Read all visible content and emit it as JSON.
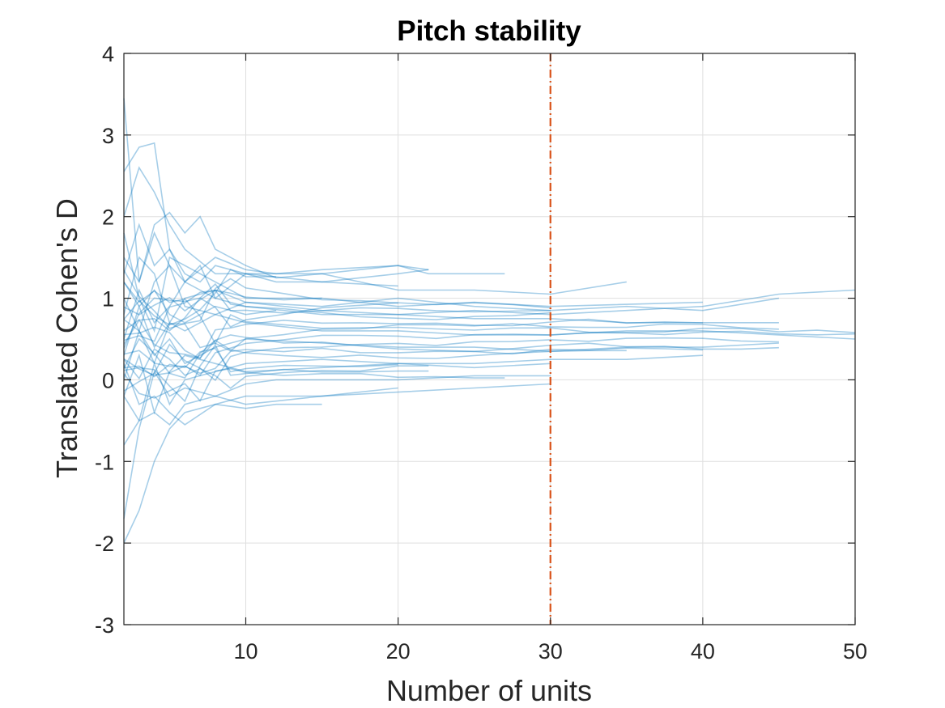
{
  "chart_data": {
    "type": "line",
    "title": "Pitch stability",
    "xlabel": "Number of units",
    "ylabel": "Translated Cohen's D",
    "xlim": [
      2,
      50
    ],
    "ylim": [
      -3,
      4
    ],
    "x_ticks": [
      10,
      20,
      30,
      40,
      50
    ],
    "y_ticks": [
      4,
      3,
      2,
      1,
      0,
      -1,
      -2,
      -3
    ],
    "grid": true,
    "legend": "none",
    "line_color": "#0072bd",
    "line_opacity": 0.35,
    "reference_line": {
      "x": 30,
      "style": "dash-dot",
      "color": "#d95319"
    },
    "series_x_max": [
      27,
      22,
      22,
      20,
      35,
      40,
      45,
      45,
      50,
      50,
      45,
      40,
      30,
      30,
      30,
      20,
      15,
      12
    ],
    "series": [
      {
        "x": [
          2,
          3,
          4,
          5,
          6,
          7,
          8,
          10,
          12,
          15,
          20,
          22,
          25,
          27
        ],
        "y": [
          1.3,
          1.9,
          1.4,
          1.6,
          1.2,
          1.4,
          1.0,
          1.3,
          1.3,
          1.3,
          1.4,
          1.3,
          1.3,
          1.3
        ]
      },
      {
        "x": [
          2,
          3,
          4,
          5,
          6,
          8,
          10,
          12,
          15,
          20,
          22
        ],
        "y": [
          3.45,
          1.2,
          1.8,
          1.4,
          1.2,
          1.5,
          1.35,
          1.3,
          1.35,
          1.4,
          1.35
        ]
      },
      {
        "x": [
          2,
          3,
          4,
          5,
          6,
          7,
          8,
          10,
          15,
          20,
          22
        ],
        "y": [
          2.55,
          2.85,
          2.9,
          1.6,
          1.3,
          1.2,
          1.4,
          1.3,
          1.2,
          1.3,
          1.35
        ]
      },
      {
        "x": [
          2,
          3,
          4,
          5,
          6,
          8,
          10,
          12,
          15,
          20
        ],
        "y": [
          2.0,
          2.6,
          2.3,
          1.9,
          1.6,
          1.3,
          1.3,
          1.2,
          1.2,
          1.15
        ]
      },
      {
        "x": [
          2,
          3,
          4,
          5,
          6,
          7,
          8,
          10,
          12,
          15,
          20,
          25,
          30,
          35
        ],
        "y": [
          1.5,
          1.2,
          1.9,
          2.05,
          1.8,
          2.0,
          1.6,
          1.4,
          1.25,
          1.3,
          1.1,
          1.1,
          1.05,
          1.2
        ]
      },
      {
        "x": [
          2,
          3,
          4,
          5,
          6,
          8,
          10,
          15,
          20,
          25,
          30,
          40
        ],
        "y": [
          1.8,
          1.0,
          0.6,
          1.5,
          1.4,
          1.2,
          1.0,
          1.0,
          0.9,
          0.95,
          0.9,
          0.95
        ]
      },
      {
        "x": [
          2,
          3,
          4,
          5,
          6,
          8,
          10,
          15,
          20,
          25,
          30,
          35,
          40,
          45
        ],
        "y": [
          0.8,
          1.5,
          1.3,
          0.7,
          1.0,
          1.1,
          0.95,
          0.9,
          1.0,
          0.9,
          0.85,
          0.9,
          0.85,
          1.0
        ]
      },
      {
        "x": [
          2,
          3,
          4,
          5,
          6,
          8,
          10,
          15,
          20,
          25,
          30,
          35,
          40,
          45
        ],
        "y": [
          1.0,
          0.6,
          1.2,
          1.4,
          0.9,
          0.8,
          0.95,
          0.85,
          0.8,
          0.75,
          0.75,
          0.7,
          0.7,
          0.7
        ]
      },
      {
        "x": [
          2,
          3,
          4,
          5,
          6,
          8,
          10,
          15,
          20,
          25,
          30,
          35,
          40,
          45,
          50
        ],
        "y": [
          0.5,
          1.1,
          0.7,
          0.9,
          1.2,
          1.0,
          0.9,
          0.8,
          0.8,
          0.85,
          0.8,
          0.85,
          0.9,
          1.05,
          1.1
        ]
      },
      {
        "x": [
          2,
          3,
          4,
          5,
          6,
          8,
          10,
          15,
          20,
          25,
          30,
          35,
          40,
          45,
          50
        ],
        "y": [
          0.3,
          0.9,
          0.4,
          0.7,
          0.6,
          0.8,
          0.7,
          0.6,
          0.6,
          0.55,
          0.55,
          0.6,
          0.6,
          0.55,
          0.5
        ]
      },
      {
        "x": [
          2,
          3,
          4,
          5,
          6,
          8,
          10,
          15,
          20,
          25,
          30,
          35,
          40,
          45
        ],
        "y": [
          0.0,
          0.6,
          0.3,
          0.5,
          0.2,
          0.4,
          0.5,
          0.45,
          0.4,
          0.4,
          0.35,
          0.4,
          0.4,
          0.45
        ]
      },
      {
        "x": [
          2,
          3,
          4,
          5,
          6,
          8,
          10,
          15,
          20,
          25,
          30,
          35,
          40
        ],
        "y": [
          -0.2,
          0.3,
          -0.4,
          0.1,
          0.3,
          0.2,
          0.1,
          0.15,
          0.2,
          0.2,
          0.25,
          0.25,
          0.3
        ]
      },
      {
        "x": [
          2,
          3,
          4,
          5,
          6,
          8,
          10,
          15,
          20,
          25,
          30
        ],
        "y": [
          -0.8,
          -0.5,
          0.2,
          -0.3,
          0.0,
          0.1,
          0.2,
          0.25,
          0.2,
          0.15,
          0.2
        ]
      },
      {
        "x": [
          2,
          3,
          4,
          5,
          6,
          8,
          10,
          12,
          15,
          20,
          25,
          30
        ],
        "y": [
          -1.7,
          -0.6,
          0.1,
          -0.2,
          -0.1,
          -0.2,
          -0.05,
          0.0,
          0.0,
          0.0,
          0.05,
          0.05
        ]
      },
      {
        "x": [
          2,
          3,
          4,
          5,
          6,
          8,
          10,
          15,
          20,
          25,
          30
        ],
        "y": [
          -2.0,
          -1.6,
          -1.0,
          -0.6,
          -0.4,
          -0.3,
          -0.2,
          -0.2,
          -0.15,
          -0.1,
          -0.05
        ]
      },
      {
        "x": [
          2,
          3,
          4,
          5,
          6,
          8,
          10,
          15,
          20
        ],
        "y": [
          -0.2,
          -0.5,
          -0.4,
          -0.55,
          -0.3,
          -0.2,
          -0.3,
          -0.2,
          -0.1
        ]
      },
      {
        "x": [
          2,
          3,
          4,
          5,
          6,
          8,
          10,
          12,
          15
        ],
        "y": [
          0.2,
          -0.3,
          -0.2,
          -0.4,
          -0.55,
          -0.3,
          -0.35,
          -0.3,
          -0.3
        ]
      },
      {
        "x": [
          2,
          3,
          4,
          5,
          6,
          8,
          10,
          12
        ],
        "y": [
          1.2,
          0.9,
          1.1,
          0.8,
          0.7,
          0.9,
          0.8,
          0.85
        ]
      }
    ]
  }
}
